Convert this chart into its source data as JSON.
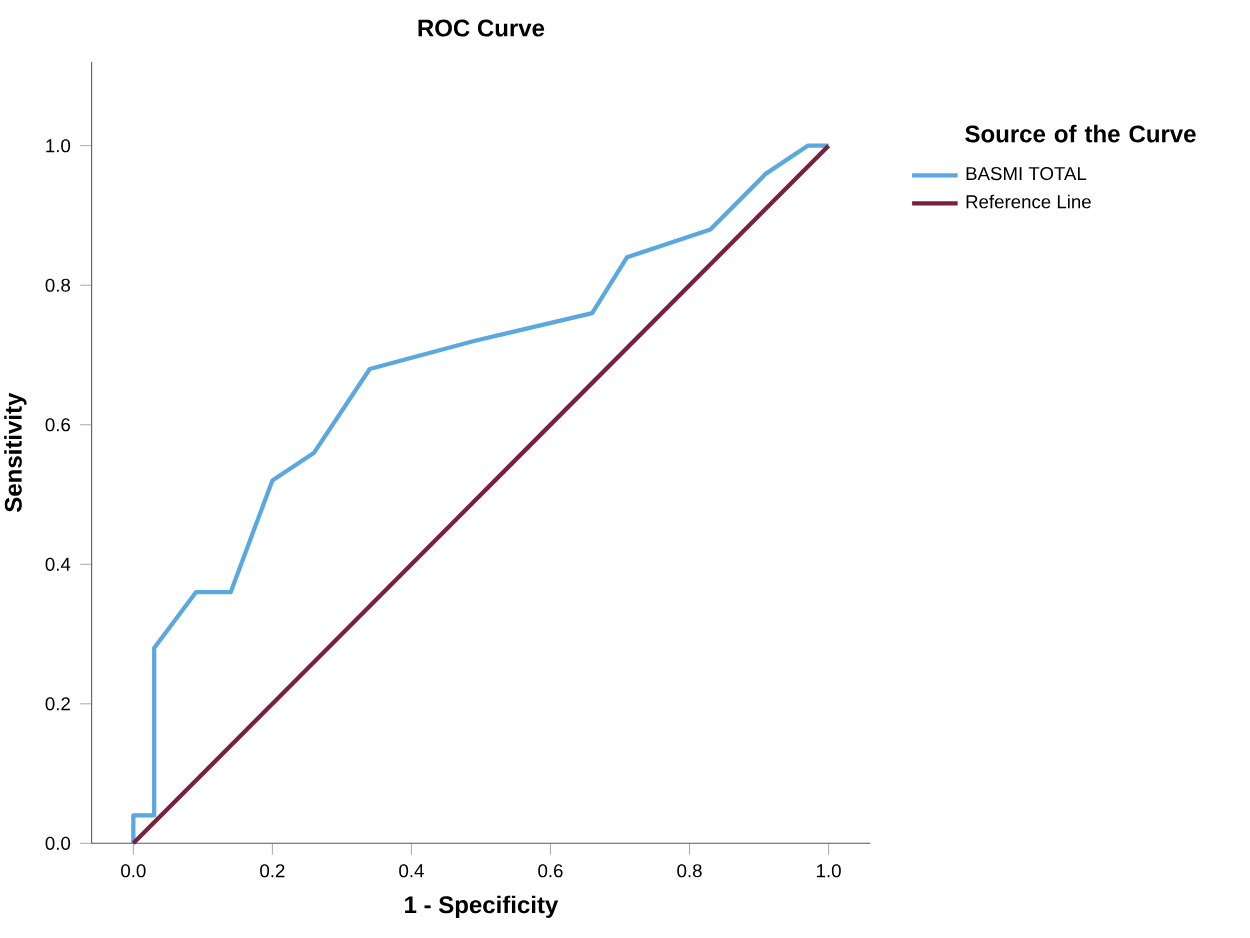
{
  "chart_data": {
    "type": "line",
    "title": "ROC Curve",
    "xlabel": "1 - Specificity",
    "ylabel": "Sensitivity",
    "legend_title": "Source of the Curve",
    "xlim": [
      -0.06,
      1.06
    ],
    "ylim": [
      0,
      1.12
    ],
    "xticks": [
      {
        "value": 0,
        "label": "0.0"
      },
      0.2,
      0.4,
      0.6,
      0.8,
      {
        "value": 1,
        "label": "1.0"
      }
    ],
    "yticks": [
      {
        "value": 0,
        "label": "0.0"
      },
      0.2,
      0.4,
      0.6,
      0.8,
      {
        "value": 1,
        "label": "1.0"
      }
    ],
    "legend": "right",
    "grid": false,
    "series": [
      {
        "name": "BASMI TOTAL",
        "color": "#5ba8de",
        "x": [
          0,
          0,
          0.03,
          0.03,
          0.09,
          0.14,
          0.2,
          0.26,
          0.34,
          0.49,
          0.66,
          0.71,
          0.83,
          0.91,
          0.97,
          1
        ],
        "values": [
          0,
          0.04,
          0.04,
          0.28,
          0.36,
          0.36,
          0.52,
          0.56,
          0.68,
          0.72,
          0.76,
          0.84,
          0.88,
          0.96,
          1,
          1
        ]
      },
      {
        "name": "Reference Line",
        "color": "#7b1f3f",
        "x": [
          0,
          1
        ],
        "values": [
          0,
          1
        ]
      }
    ]
  }
}
